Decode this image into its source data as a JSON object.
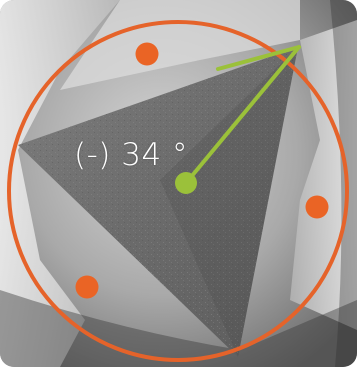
{
  "measurement": {
    "angle_label": "(-) 34 °"
  },
  "colors": {
    "circle": "#e5632a",
    "markers": "#ea6425",
    "angle_line": "#9bc13a"
  }
}
